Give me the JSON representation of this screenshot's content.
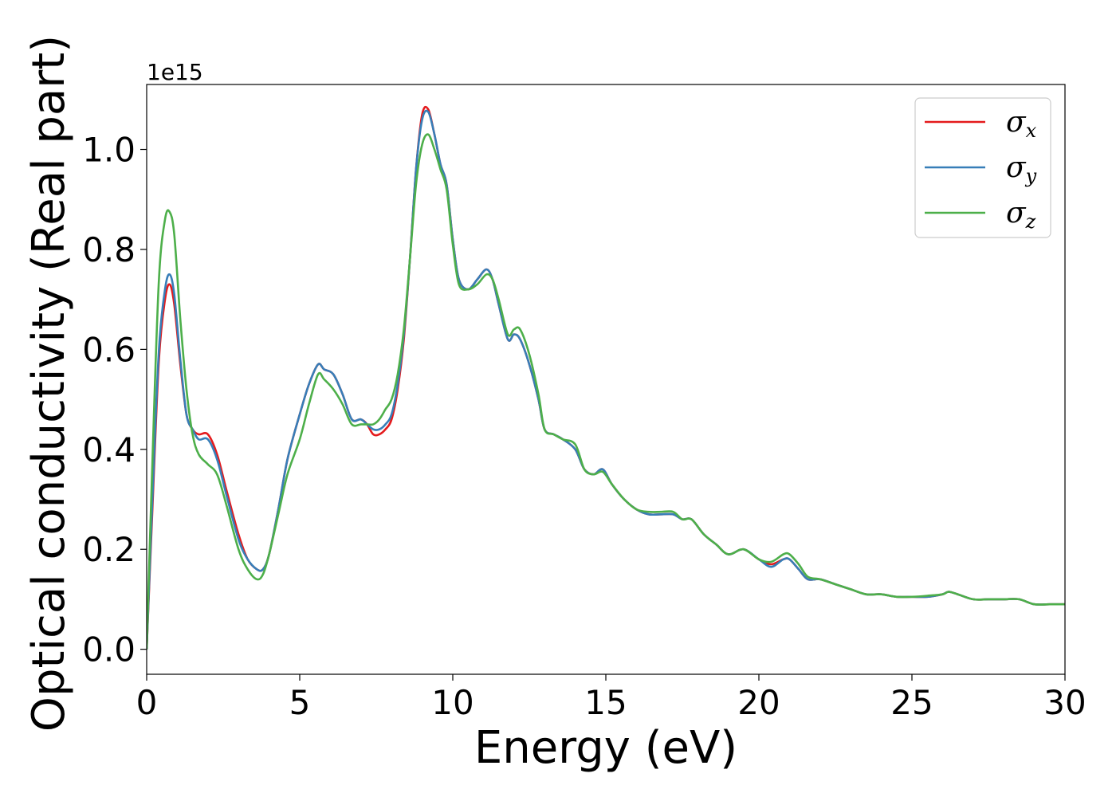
{
  "chart_data": {
    "type": "line",
    "title": "",
    "xlabel": "Energy (eV)",
    "ylabel": "Optical conductivity (Real part)",
    "y_offset_label": "1e15",
    "xlim": [
      0,
      30
    ],
    "ylim": [
      -0.05,
      1.13
    ],
    "x_ticks": [
      0,
      5,
      10,
      15,
      20,
      25,
      30
    ],
    "x_tick_labels": [
      "0",
      "5",
      "10",
      "15",
      "20",
      "25",
      "30"
    ],
    "y_ticks": [
      0.0,
      0.2,
      0.4,
      0.6,
      0.8,
      1.0
    ],
    "y_tick_labels": [
      "0.0",
      "0.2",
      "0.4",
      "0.6",
      "0.8",
      "1.0"
    ],
    "grid": false,
    "legend_position": "top-right",
    "series": [
      {
        "name": "σx",
        "symbol": "σ",
        "subscript": "x",
        "color": "#e41a1c",
        "x": [
          0,
          0.2,
          0.4,
          0.6,
          0.75,
          0.9,
          1.1,
          1.3,
          1.5,
          1.7,
          2.0,
          2.3,
          2.6,
          3.0,
          3.3,
          3.6,
          3.8,
          4.0,
          4.3,
          4.6,
          5.0,
          5.3,
          5.6,
          5.8,
          6.1,
          6.4,
          6.7,
          7.0,
          7.2,
          7.4,
          7.6,
          7.8,
          8.0,
          8.2,
          8.4,
          8.6,
          8.8,
          9.0,
          9.2,
          9.4,
          9.6,
          9.8,
          10.0,
          10.2,
          10.5,
          10.8,
          11.1,
          11.3,
          11.5,
          11.8,
          12.0,
          12.2,
          12.5,
          12.8,
          13.0,
          13.3,
          13.6,
          14.0,
          14.3,
          14.6,
          14.9,
          15.2,
          15.6,
          16.0,
          16.4,
          16.8,
          17.2,
          17.5,
          17.8,
          18.2,
          18.6,
          19.0,
          19.5,
          20.0,
          20.4,
          20.8,
          21.0,
          21.3,
          21.6,
          22.0,
          22.5,
          23.0,
          23.5,
          24.0,
          24.5,
          25.0,
          25.5,
          26.0,
          26.2,
          26.5,
          27.0,
          27.5,
          28.0,
          28.5,
          29.0,
          29.5,
          30.0
        ],
        "y": [
          0.0,
          0.3,
          0.58,
          0.7,
          0.73,
          0.69,
          0.57,
          0.47,
          0.44,
          0.43,
          0.43,
          0.39,
          0.32,
          0.23,
          0.18,
          0.16,
          0.16,
          0.19,
          0.28,
          0.38,
          0.47,
          0.53,
          0.57,
          0.56,
          0.55,
          0.51,
          0.46,
          0.46,
          0.45,
          0.43,
          0.43,
          0.44,
          0.46,
          0.52,
          0.62,
          0.78,
          0.96,
          1.07,
          1.08,
          1.03,
          0.97,
          0.93,
          0.82,
          0.74,
          0.72,
          0.74,
          0.76,
          0.74,
          0.69,
          0.62,
          0.63,
          0.62,
          0.57,
          0.5,
          0.44,
          0.43,
          0.42,
          0.4,
          0.36,
          0.35,
          0.36,
          0.33,
          0.3,
          0.28,
          0.27,
          0.27,
          0.27,
          0.26,
          0.26,
          0.23,
          0.21,
          0.19,
          0.2,
          0.18,
          0.17,
          0.18,
          0.18,
          0.16,
          0.14,
          0.14,
          0.13,
          0.12,
          0.11,
          0.11,
          0.105,
          0.105,
          0.105,
          0.11,
          0.115,
          0.11,
          0.1,
          0.1,
          0.1,
          0.1,
          0.09,
          0.09,
          0.09
        ]
      },
      {
        "name": "σy",
        "symbol": "σ",
        "subscript": "y",
        "color": "#377eb8",
        "x": [
          0,
          0.2,
          0.4,
          0.6,
          0.75,
          0.9,
          1.1,
          1.3,
          1.5,
          1.7,
          2.0,
          2.3,
          2.6,
          3.0,
          3.3,
          3.6,
          3.8,
          4.0,
          4.3,
          4.6,
          5.0,
          5.3,
          5.6,
          5.8,
          6.1,
          6.4,
          6.7,
          7.0,
          7.2,
          7.4,
          7.6,
          7.8,
          8.0,
          8.2,
          8.4,
          8.6,
          8.8,
          9.0,
          9.2,
          9.4,
          9.6,
          9.8,
          10.0,
          10.2,
          10.5,
          10.8,
          11.1,
          11.3,
          11.5,
          11.8,
          12.0,
          12.2,
          12.5,
          12.8,
          13.0,
          13.3,
          13.6,
          14.0,
          14.3,
          14.6,
          14.9,
          15.2,
          15.6,
          16.0,
          16.4,
          16.8,
          17.2,
          17.5,
          17.8,
          18.2,
          18.6,
          19.0,
          19.5,
          20.0,
          20.4,
          20.8,
          21.0,
          21.3,
          21.6,
          22.0,
          22.5,
          23.0,
          23.5,
          24.0,
          24.5,
          25.0,
          25.5,
          26.0,
          26.2,
          26.5,
          27.0,
          27.5,
          28.0,
          28.5,
          29.0,
          29.5,
          30.0
        ],
        "y": [
          0.0,
          0.32,
          0.6,
          0.72,
          0.75,
          0.71,
          0.58,
          0.47,
          0.44,
          0.42,
          0.42,
          0.38,
          0.31,
          0.22,
          0.18,
          0.16,
          0.16,
          0.19,
          0.28,
          0.38,
          0.47,
          0.53,
          0.57,
          0.56,
          0.55,
          0.51,
          0.46,
          0.46,
          0.45,
          0.44,
          0.44,
          0.45,
          0.47,
          0.53,
          0.63,
          0.78,
          0.96,
          1.06,
          1.075,
          1.03,
          0.97,
          0.93,
          0.82,
          0.74,
          0.72,
          0.74,
          0.76,
          0.74,
          0.69,
          0.62,
          0.63,
          0.62,
          0.57,
          0.5,
          0.44,
          0.43,
          0.42,
          0.4,
          0.36,
          0.35,
          0.36,
          0.33,
          0.3,
          0.28,
          0.27,
          0.27,
          0.27,
          0.26,
          0.26,
          0.23,
          0.21,
          0.19,
          0.2,
          0.18,
          0.165,
          0.18,
          0.18,
          0.16,
          0.14,
          0.14,
          0.13,
          0.12,
          0.11,
          0.11,
          0.105,
          0.105,
          0.105,
          0.11,
          0.115,
          0.11,
          0.1,
          0.1,
          0.1,
          0.1,
          0.09,
          0.09,
          0.09
        ]
      },
      {
        "name": "σz",
        "symbol": "σ",
        "subscript": "z",
        "color": "#4daf4a",
        "x": [
          0,
          0.2,
          0.4,
          0.6,
          0.75,
          0.9,
          1.1,
          1.3,
          1.5,
          1.7,
          2.0,
          2.3,
          2.6,
          3.0,
          3.3,
          3.6,
          3.8,
          4.0,
          4.3,
          4.6,
          5.0,
          5.3,
          5.6,
          5.8,
          6.1,
          6.4,
          6.7,
          7.0,
          7.2,
          7.4,
          7.6,
          7.8,
          8.0,
          8.2,
          8.4,
          8.6,
          8.8,
          9.0,
          9.2,
          9.4,
          9.6,
          9.8,
          10.0,
          10.2,
          10.5,
          10.8,
          11.1,
          11.3,
          11.5,
          11.8,
          12.0,
          12.2,
          12.5,
          12.8,
          13.0,
          13.3,
          13.6,
          14.0,
          14.3,
          14.6,
          14.9,
          15.2,
          15.6,
          16.0,
          16.4,
          16.8,
          17.2,
          17.5,
          17.8,
          18.2,
          18.6,
          19.0,
          19.5,
          20.0,
          20.4,
          20.8,
          21.0,
          21.3,
          21.6,
          22.0,
          22.5,
          23.0,
          23.5,
          24.0,
          24.5,
          25.0,
          25.5,
          26.0,
          26.2,
          26.5,
          27.0,
          27.5,
          28.0,
          28.5,
          29.0,
          29.5,
          30.0
        ],
        "y": [
          0.0,
          0.4,
          0.74,
          0.86,
          0.875,
          0.83,
          0.66,
          0.52,
          0.43,
          0.39,
          0.37,
          0.35,
          0.29,
          0.2,
          0.16,
          0.14,
          0.15,
          0.19,
          0.27,
          0.35,
          0.42,
          0.49,
          0.55,
          0.54,
          0.52,
          0.49,
          0.45,
          0.45,
          0.45,
          0.45,
          0.46,
          0.48,
          0.5,
          0.55,
          0.64,
          0.78,
          0.93,
          1.01,
          1.03,
          1.0,
          0.96,
          0.92,
          0.81,
          0.73,
          0.72,
          0.73,
          0.75,
          0.74,
          0.7,
          0.63,
          0.64,
          0.64,
          0.59,
          0.51,
          0.44,
          0.43,
          0.42,
          0.41,
          0.36,
          0.35,
          0.355,
          0.33,
          0.3,
          0.28,
          0.275,
          0.275,
          0.275,
          0.26,
          0.26,
          0.23,
          0.21,
          0.19,
          0.2,
          0.18,
          0.175,
          0.19,
          0.19,
          0.17,
          0.145,
          0.14,
          0.13,
          0.12,
          0.11,
          0.11,
          0.105,
          0.105,
          0.107,
          0.11,
          0.115,
          0.11,
          0.1,
          0.1,
          0.1,
          0.1,
          0.09,
          0.09,
          0.09
        ]
      }
    ]
  }
}
